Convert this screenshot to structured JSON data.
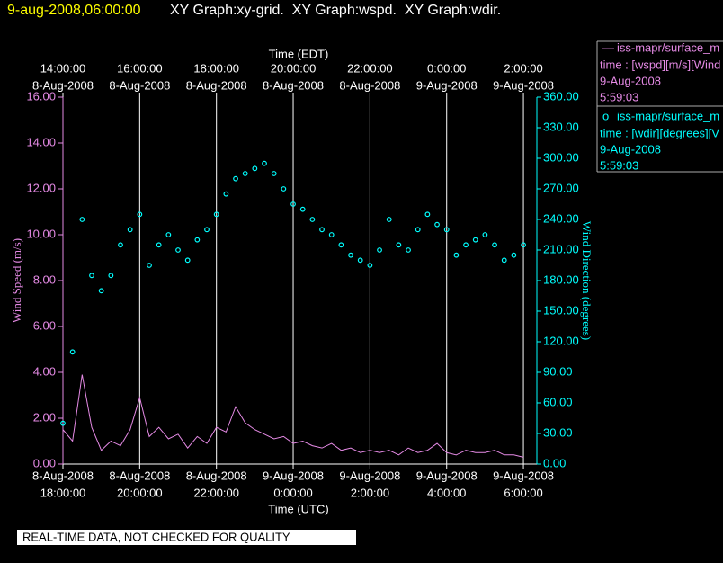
{
  "chart_data": {
    "type": "line_scatter",
    "title": "9-aug-2008,06:00:00",
    "subtitle": "XY Graph:xy-grid.  XY Graph:wspd.  XY Graph:wdir.",
    "x_label": "Time (UTC)",
    "x2_label": "Time (EDT)",
    "y_label": "Wind Speed (m/s)",
    "y2_label": "Wind Direction (degrees)",
    "footer": "REAL-TIME DATA, NOT CHECKED FOR QUALITY",
    "grid": true,
    "legend_position": "right",
    "xlim": [
      "2008-08-08T18:00Z",
      "2008-08-09T06:21Z"
    ],
    "xticks": [
      {
        "value": "2008-08-08T18:00Z",
        "label": [
          "8-Aug-2008",
          "18:00:00"
        ]
      },
      {
        "value": "2008-08-08T20:00Z",
        "label": [
          "8-Aug-2008",
          "20:00:00"
        ]
      },
      {
        "value": "2008-08-08T22:00Z",
        "label": [
          "8-Aug-2008",
          "22:00:00"
        ]
      },
      {
        "value": "2008-08-09T00:00Z",
        "label": [
          "9-Aug-2008",
          "0:00:00"
        ]
      },
      {
        "value": "2008-08-09T02:00Z",
        "label": [
          "9-Aug-2008",
          "2:00:00"
        ]
      },
      {
        "value": "2008-08-09T04:00Z",
        "label": [
          "9-Aug-2008",
          "4:00:00"
        ]
      },
      {
        "value": "2008-08-09T06:00Z",
        "label": [
          "9-Aug-2008",
          "6:00:00"
        ]
      }
    ],
    "x2ticks": [
      {
        "value": "2008-08-08T18:00Z",
        "label": [
          "14:00:00",
          "8-Aug-2008"
        ]
      },
      {
        "value": "2008-08-08T20:00Z",
        "label": [
          "16:00:00",
          "8-Aug-2008"
        ]
      },
      {
        "value": "2008-08-08T22:00Z",
        "label": [
          "18:00:00",
          "8-Aug-2008"
        ]
      },
      {
        "value": "2008-08-09T00:00Z",
        "label": [
          "20:00:00",
          "8-Aug-2008"
        ]
      },
      {
        "value": "2008-08-09T02:00Z",
        "label": [
          "22:00:00",
          "8-Aug-2008"
        ]
      },
      {
        "value": "2008-08-09T04:00Z",
        "label": [
          "0:00:00",
          "9-Aug-2008"
        ]
      },
      {
        "value": "2008-08-09T06:00Z",
        "label": [
          "2:00:00",
          "9-Aug-2008"
        ]
      }
    ],
    "ylim": [
      0,
      16
    ],
    "yticks": [
      {
        "value": 0,
        "label": "0.00"
      },
      {
        "value": 2,
        "label": "2.00"
      },
      {
        "value": 4,
        "label": "4.00"
      },
      {
        "value": 6,
        "label": "6.00"
      },
      {
        "value": 8,
        "label": "8.00"
      },
      {
        "value": 10,
        "label": "10.00"
      },
      {
        "value": 12,
        "label": "12.00"
      },
      {
        "value": 14,
        "label": "14.00"
      },
      {
        "value": 16,
        "label": "16.00"
      }
    ],
    "y2lim": [
      0,
      360
    ],
    "y2ticks": [
      {
        "value": 0,
        "label": "0.00"
      },
      {
        "value": 30,
        "label": "30.00"
      },
      {
        "value": 60,
        "label": "60.00"
      },
      {
        "value": 90,
        "label": "90.00"
      },
      {
        "value": 120,
        "label": "120.00"
      },
      {
        "value": 150,
        "label": "150.00"
      },
      {
        "value": 180,
        "label": "180.00"
      },
      {
        "value": 210,
        "label": "210.00"
      },
      {
        "value": 240,
        "label": "240.00"
      },
      {
        "value": 270,
        "label": "270.00"
      },
      {
        "value": 300,
        "label": "300.00"
      },
      {
        "value": 330,
        "label": "330.00"
      },
      {
        "value": 360,
        "label": "360.00"
      }
    ],
    "x": [
      "2008-08-08T18:00Z",
      "2008-08-08T18:15Z",
      "2008-08-08T18:30Z",
      "2008-08-08T18:45Z",
      "2008-08-08T19:00Z",
      "2008-08-08T19:15Z",
      "2008-08-08T19:30Z",
      "2008-08-08T19:45Z",
      "2008-08-08T20:00Z",
      "2008-08-08T20:15Z",
      "2008-08-08T20:30Z",
      "2008-08-08T20:45Z",
      "2008-08-08T21:00Z",
      "2008-08-08T21:15Z",
      "2008-08-08T21:30Z",
      "2008-08-08T21:45Z",
      "2008-08-08T22:00Z",
      "2008-08-08T22:15Z",
      "2008-08-08T22:30Z",
      "2008-08-08T22:45Z",
      "2008-08-08T23:00Z",
      "2008-08-08T23:15Z",
      "2008-08-08T23:30Z",
      "2008-08-08T23:45Z",
      "2008-08-09T00:00Z",
      "2008-08-09T00:15Z",
      "2008-08-09T00:30Z",
      "2008-08-09T00:45Z",
      "2008-08-09T01:00Z",
      "2008-08-09T01:15Z",
      "2008-08-09T01:30Z",
      "2008-08-09T01:45Z",
      "2008-08-09T02:00Z",
      "2008-08-09T02:15Z",
      "2008-08-09T02:30Z",
      "2008-08-09T02:45Z",
      "2008-08-09T03:00Z",
      "2008-08-09T03:15Z",
      "2008-08-09T03:30Z",
      "2008-08-09T03:45Z",
      "2008-08-09T04:00Z",
      "2008-08-09T04:15Z",
      "2008-08-09T04:30Z",
      "2008-08-09T04:45Z",
      "2008-08-09T05:00Z",
      "2008-08-09T05:15Z",
      "2008-08-09T05:30Z",
      "2008-08-09T05:45Z",
      "2008-08-09T06:00Z"
    ],
    "series": [
      {
        "name": "iss-mapr/surface_m",
        "legend_mark": "—",
        "legend_lines": [
          "time : [wspd][m/s][Wind",
          "9-Aug-2008",
          "5:59:03"
        ],
        "color": "#e58ae5",
        "mark": "line",
        "axis": "y",
        "values": [
          1.5,
          1.0,
          3.9,
          1.6,
          0.6,
          1.0,
          0.8,
          1.5,
          2.9,
          1.2,
          1.6,
          1.1,
          1.3,
          0.7,
          1.2,
          0.9,
          1.6,
          1.4,
          2.5,
          1.8,
          1.5,
          1.3,
          1.1,
          1.2,
          0.9,
          1.0,
          0.8,
          0.7,
          0.9,
          0.6,
          0.7,
          0.5,
          0.6,
          0.5,
          0.6,
          0.4,
          0.7,
          0.5,
          0.6,
          0.9,
          0.5,
          0.4,
          0.6,
          0.5,
          0.5,
          0.6,
          0.4,
          0.4,
          0.3
        ]
      },
      {
        "name": "iss-mapr/surface_m",
        "legend_mark": "o",
        "legend_lines": [
          "time : [wdir][degrees][V",
          "9-Aug-2008",
          "5:59:03"
        ],
        "color": "#00ffff",
        "mark": "circle",
        "axis": "y2",
        "values": [
          40,
          110,
          240,
          185,
          170,
          185,
          215,
          230,
          245,
          195,
          215,
          225,
          210,
          200,
          220,
          230,
          245,
          265,
          280,
          285,
          290,
          295,
          285,
          270,
          255,
          250,
          240,
          230,
          225,
          215,
          205,
          200,
          195,
          210,
          240,
          215,
          210,
          230,
          245,
          235,
          230,
          205,
          215,
          220,
          225,
          215,
          200,
          205,
          215
        ]
      }
    ]
  }
}
